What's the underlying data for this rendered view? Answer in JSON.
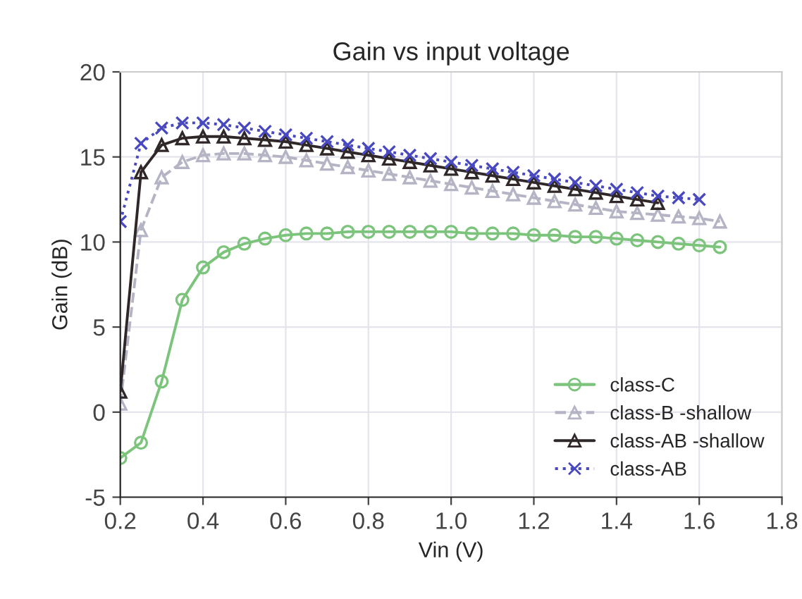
{
  "chart_data": {
    "type": "line",
    "title": "Gain vs input voltage",
    "xlabel": "Vin (V)",
    "ylabel": "Gain (dB)",
    "xlim": [
      0.2,
      1.8
    ],
    "xticks": [
      {
        "value": 0.2,
        "label": "0.2"
      },
      {
        "value": 0.4,
        "label": "0.4"
      },
      {
        "value": 0.6,
        "label": "0.6"
      },
      {
        "value": 0.8,
        "label": "0.8"
      },
      {
        "value": 1.0,
        "label": "1.0"
      },
      {
        "value": 1.2,
        "label": "1.2"
      },
      {
        "value": 1.4,
        "label": "1.4"
      },
      {
        "value": 1.6,
        "label": "1.6"
      },
      {
        "value": 1.8,
        "label": "1.8"
      }
    ],
    "ylim": [
      -5,
      20
    ],
    "yticks": [
      -5,
      0,
      5,
      10,
      15,
      20
    ],
    "grid": true,
    "legend": "bottom right",
    "series": [
      {
        "name": "class-C",
        "color": "#7cc47c",
        "marker": "circle",
        "line_style": "solid",
        "x": [
          0.2,
          0.25,
          0.3,
          0.35,
          0.4,
          0.45,
          0.5,
          0.55,
          0.6,
          0.65,
          0.7,
          0.75,
          0.8,
          0.85,
          0.9,
          0.95,
          1.0,
          1.05,
          1.1,
          1.15,
          1.2,
          1.25,
          1.3,
          1.35,
          1.4,
          1.45,
          1.5,
          1.55,
          1.6,
          1.65
        ],
        "values": [
          -2.7,
          -1.8,
          1.8,
          6.6,
          8.5,
          9.4,
          9.9,
          10.2,
          10.4,
          10.5,
          10.5,
          10.6,
          10.6,
          10.6,
          10.6,
          10.6,
          10.6,
          10.5,
          10.5,
          10.5,
          10.4,
          10.4,
          10.3,
          10.3,
          10.2,
          10.1,
          10.0,
          9.9,
          9.8,
          9.7
        ]
      },
      {
        "name": "class-B -shallow",
        "color": "#b4b4c4",
        "marker": "triangle",
        "line_style": "dashed",
        "x": [
          0.2,
          0.25,
          0.3,
          0.35,
          0.4,
          0.45,
          0.5,
          0.55,
          0.6,
          0.65,
          0.7,
          0.75,
          0.8,
          0.85,
          0.9,
          0.95,
          1.0,
          1.05,
          1.1,
          1.15,
          1.2,
          1.25,
          1.3,
          1.35,
          1.4,
          1.45,
          1.5,
          1.55,
          1.6,
          1.65
        ],
        "values": [
          0.5,
          10.7,
          13.8,
          14.7,
          15.1,
          15.2,
          15.2,
          15.1,
          15.0,
          14.8,
          14.6,
          14.4,
          14.2,
          14.0,
          13.8,
          13.6,
          13.4,
          13.2,
          13.0,
          12.8,
          12.6,
          12.4,
          12.2,
          12.0,
          11.8,
          11.7,
          11.6,
          11.5,
          11.4,
          11.2
        ]
      },
      {
        "name": "class-AB -shallow",
        "color": "#302828",
        "marker": "triangle",
        "line_style": "solid",
        "x": [
          0.2,
          0.25,
          0.3,
          0.35,
          0.4,
          0.45,
          0.5,
          0.55,
          0.6,
          0.65,
          0.7,
          0.75,
          0.8,
          0.85,
          0.9,
          0.95,
          1.0,
          1.05,
          1.1,
          1.15,
          1.2,
          1.25,
          1.3,
          1.35,
          1.4,
          1.45,
          1.5
        ],
        "values": [
          1.2,
          14.1,
          15.7,
          16.1,
          16.2,
          16.2,
          16.1,
          16.0,
          15.9,
          15.7,
          15.5,
          15.3,
          15.1,
          14.9,
          14.7,
          14.5,
          14.3,
          14.1,
          13.9,
          13.7,
          13.5,
          13.3,
          13.1,
          12.9,
          12.7,
          12.5,
          12.3
        ]
      },
      {
        "name": "class-AB",
        "color": "#4848c0",
        "marker": "cross",
        "line_style": "dotted",
        "x": [
          0.2,
          0.25,
          0.3,
          0.35,
          0.4,
          0.45,
          0.5,
          0.55,
          0.6,
          0.65,
          0.7,
          0.75,
          0.8,
          0.85,
          0.9,
          0.95,
          1.0,
          1.05,
          1.1,
          1.15,
          1.2,
          1.25,
          1.3,
          1.35,
          1.4,
          1.45,
          1.5,
          1.55,
          1.6
        ],
        "values": [
          11.2,
          15.8,
          16.7,
          17.0,
          17.0,
          16.9,
          16.7,
          16.5,
          16.3,
          16.1,
          15.9,
          15.7,
          15.5,
          15.3,
          15.1,
          14.9,
          14.7,
          14.5,
          14.3,
          14.1,
          13.9,
          13.7,
          13.5,
          13.3,
          13.1,
          12.9,
          12.7,
          12.6,
          12.5
        ]
      }
    ]
  }
}
